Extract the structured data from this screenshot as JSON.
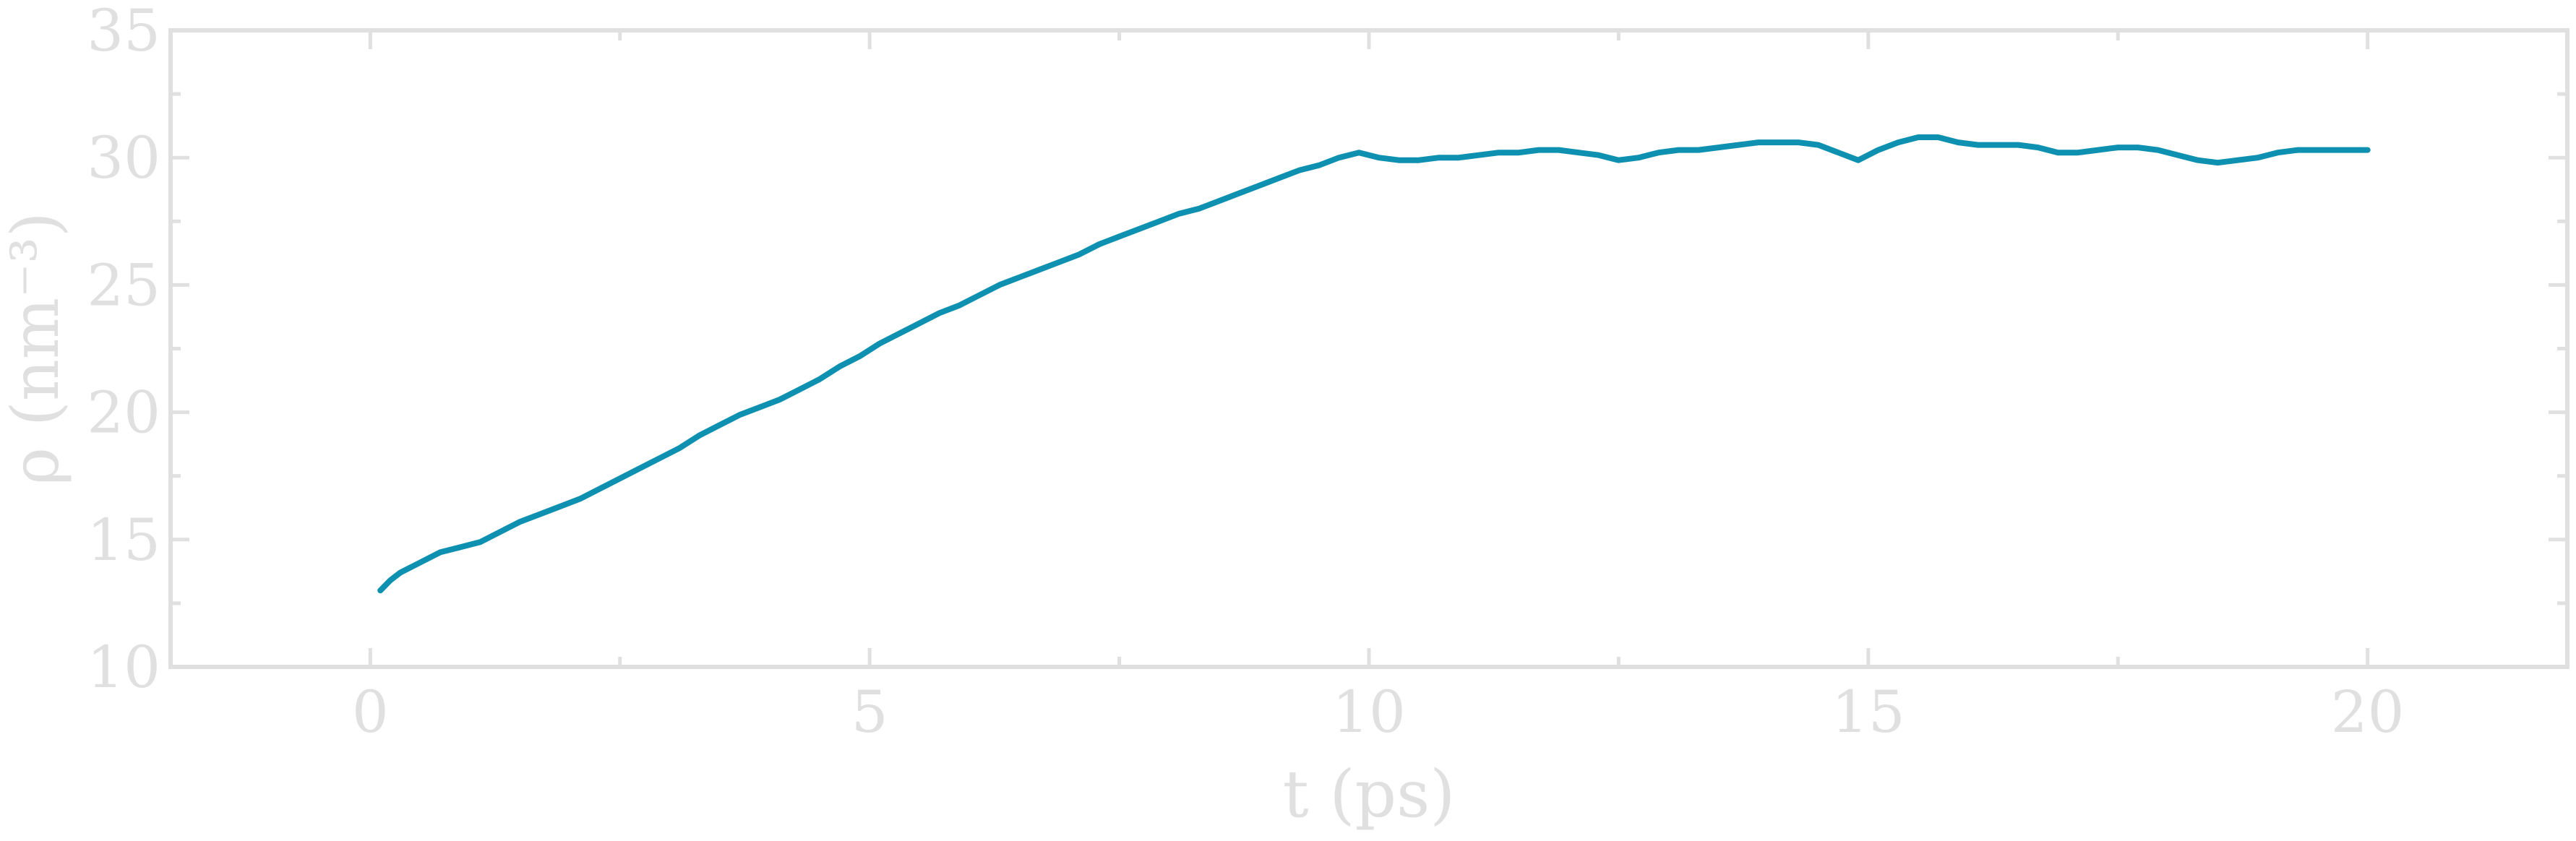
{
  "chart_data": {
    "type": "line",
    "title": "",
    "xlabel": "t (ps)",
    "ylabel": "ρ (nm⁻³)",
    "xlim": [
      -2,
      22
    ],
    "ylim": [
      10,
      35
    ],
    "grid": false,
    "x_ticks": [
      "0",
      "5",
      "10",
      "15",
      "20"
    ],
    "y_ticks": [
      "10",
      "15",
      "20",
      "25",
      "30",
      "35"
    ],
    "colors": {
      "line": "#0e91b0",
      "axis": "#e0e0e0"
    },
    "series": [
      {
        "x": [
          0.1,
          0.2,
          0.3,
          0.5,
          0.7,
          0.9,
          1.1,
          1.3,
          1.5,
          1.7,
          1.9,
          2.1,
          2.3,
          2.5,
          2.7,
          2.9,
          3.1,
          3.3,
          3.5,
          3.7,
          3.9,
          4.1,
          4.3,
          4.5,
          4.7,
          4.9,
          5.1,
          5.3,
          5.5,
          5.7,
          5.9,
          6.1,
          6.3,
          6.5,
          6.7,
          6.9,
          7.1,
          7.3,
          7.5,
          7.7,
          7.9,
          8.1,
          8.3,
          8.5,
          8.7,
          8.9,
          9.1,
          9.3,
          9.5,
          9.7,
          9.9,
          10.1,
          10.3,
          10.5,
          10.7,
          10.9,
          11.1,
          11.3,
          11.5,
          11.7,
          11.9,
          12.1,
          12.3,
          12.5,
          12.7,
          12.9,
          13.1,
          13.3,
          13.5,
          13.7,
          13.9,
          14.1,
          14.3,
          14.5,
          14.7,
          14.9,
          15.1,
          15.3,
          15.5,
          15.7,
          15.9,
          16.1,
          16.3,
          16.5,
          16.7,
          16.9,
          17.1,
          17.3,
          17.5,
          17.7,
          17.9,
          18.1,
          18.3,
          18.5,
          18.7,
          18.9,
          19.1,
          19.3,
          19.5,
          19.7,
          20.0
        ],
        "y": [
          13.0,
          13.4,
          13.7,
          14.1,
          14.5,
          14.7,
          14.9,
          15.3,
          15.7,
          16.0,
          16.3,
          16.6,
          17.0,
          17.4,
          17.8,
          18.2,
          18.6,
          19.1,
          19.5,
          19.9,
          20.2,
          20.5,
          20.9,
          21.3,
          21.8,
          22.2,
          22.7,
          23.1,
          23.5,
          23.9,
          24.2,
          24.6,
          25.0,
          25.3,
          25.6,
          25.9,
          26.2,
          26.6,
          26.9,
          27.2,
          27.5,
          27.8,
          28.0,
          28.3,
          28.6,
          28.9,
          29.2,
          29.5,
          29.7,
          30.0,
          30.2,
          30.0,
          29.9,
          29.9,
          30.0,
          30.0,
          30.1,
          30.2,
          30.2,
          30.3,
          30.3,
          30.2,
          30.1,
          29.9,
          30.0,
          30.2,
          30.3,
          30.3,
          30.4,
          30.5,
          30.6,
          30.6,
          30.6,
          30.5,
          30.2,
          29.9,
          30.3,
          30.6,
          30.8,
          30.8,
          30.6,
          30.5,
          30.5,
          30.5,
          30.4,
          30.2,
          30.2,
          30.3,
          30.4,
          30.4,
          30.3,
          30.1,
          29.9,
          29.8,
          29.9,
          30.0,
          30.2,
          30.3,
          30.3,
          30.3,
          30.3
        ]
      }
    ]
  }
}
